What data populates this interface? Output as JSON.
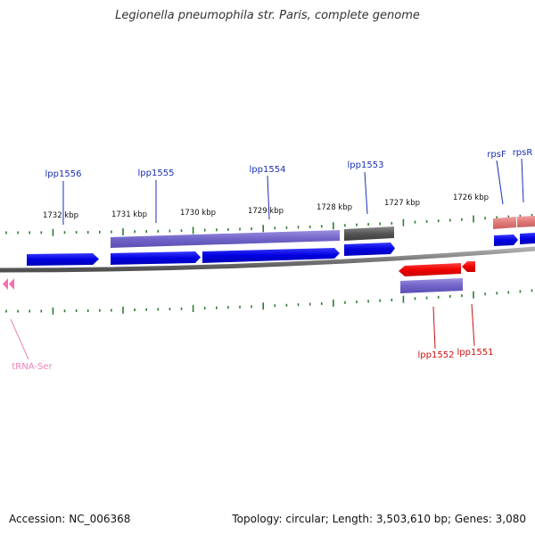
{
  "title": "Legionella pneumophila str. Paris, complete genome",
  "footer": {
    "accession": "Accession: NC_006368",
    "summary": "Topology: circular; Length: 3,503,610 bp; Genes: 3,080"
  },
  "colors": {
    "backbone": "#808080",
    "tick": "#2e7d32",
    "gene_forward": "#0000e6",
    "gene_reverse": "#ee0000",
    "cds_purple": "#7064c8",
    "gene_dark": "#555555",
    "rrna_pink": "#e07878",
    "trna": "#f070b0",
    "label_forward": "#1a2fb0",
    "label_reverse": "#cc1010",
    "label_trna": "#f080b8"
  },
  "scale": [
    {
      "label": "1732 kbp"
    },
    {
      "label": "1731 kbp"
    },
    {
      "label": "1730 kbp"
    },
    {
      "label": "1729 kbp"
    },
    {
      "label": "1728 kbp"
    },
    {
      "label": "1727 kbp"
    },
    {
      "label": "1726 kbp"
    }
  ],
  "gene_labels": [
    {
      "text": "lpp1556",
      "strand": "forward"
    },
    {
      "text": "lpp1555",
      "strand": "forward"
    },
    {
      "text": "lpp1554",
      "strand": "forward"
    },
    {
      "text": "lpp1553",
      "strand": "forward"
    },
    {
      "text": "rpsF",
      "strand": "forward"
    },
    {
      "text": "rpsR",
      "strand": "forward"
    },
    {
      "text": "lpp1552",
      "strand": "reverse"
    },
    {
      "text": "lpp1551",
      "strand": "reverse"
    },
    {
      "text": "tRNA-Ser",
      "strand": "trna"
    }
  ]
}
